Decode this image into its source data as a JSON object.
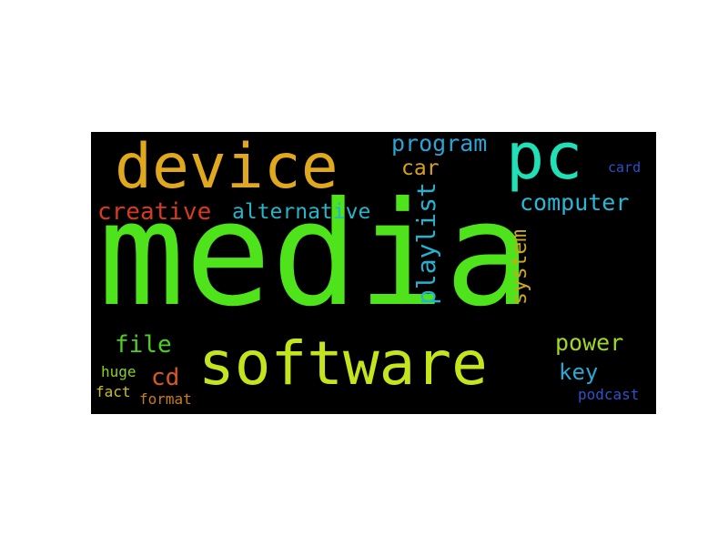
{
  "words": {
    "media": {
      "text": "media",
      "color": "#4ee31a"
    },
    "software": {
      "text": "software",
      "color": "#c4e51c"
    },
    "device": {
      "text": "device",
      "color": "#e0a81c"
    },
    "pc": {
      "text": "pc",
      "color": "#1fe0b6"
    },
    "program": {
      "text": "program",
      "color": "#2ba3d6"
    },
    "car": {
      "text": "car",
      "color": "#d9a21c"
    },
    "card": {
      "text": "card",
      "color": "#2f4fc9"
    },
    "computer": {
      "text": "computer",
      "color": "#27b8d6"
    },
    "creative": {
      "text": "creative",
      "color": "#d83a20"
    },
    "alternative": {
      "text": "alternative",
      "color": "#26b4c9"
    },
    "playlist": {
      "text": "playlist",
      "color": "#25b2d0"
    },
    "system": {
      "text": "system",
      "color": "#c9a820"
    },
    "file": {
      "text": "file",
      "color": "#4ccf1e"
    },
    "power": {
      "text": "power",
      "color": "#9fd81e"
    },
    "key": {
      "text": "key",
      "color": "#27a9d6"
    },
    "huge": {
      "text": "huge",
      "color": "#8ed11c"
    },
    "cd": {
      "text": "cd",
      "color": "#d8581e"
    },
    "fact": {
      "text": "fact",
      "color": "#c8c11c"
    },
    "format": {
      "text": "format",
      "color": "#c87d1c"
    },
    "podcast": {
      "text": "podcast",
      "color": "#2f52cc"
    }
  }
}
